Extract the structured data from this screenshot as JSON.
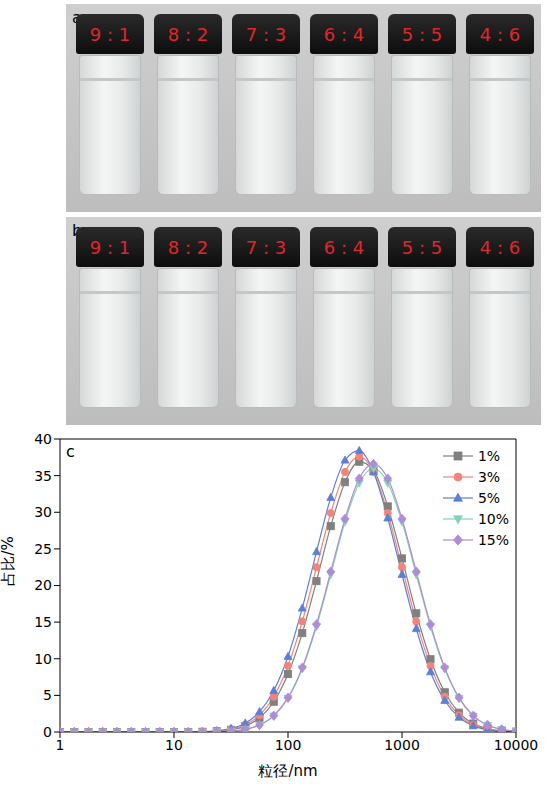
{
  "photos": [
    {
      "label": "a",
      "vials": [
        "9 : 1",
        "8 : 2",
        "7 : 3",
        "6 : 4",
        "5 : 5",
        "4 : 6"
      ]
    },
    {
      "label": "b",
      "vials": [
        "9 : 1",
        "8 : 2",
        "7 : 3",
        "6 : 4",
        "5 : 5",
        "4 : 6"
      ]
    }
  ],
  "chart_data": {
    "type": "line",
    "annotations": [
      "c"
    ],
    "x_label": "粒径/nm",
    "y_label": "占比/%",
    "log": "x",
    "grid": false,
    "legend": "upper right",
    "xlim": [
      1,
      10000
    ],
    "xticks": [
      1,
      10,
      100,
      1000,
      10000
    ],
    "ylim": [
      0,
      40
    ],
    "yticks": [
      0,
      5,
      10,
      15,
      20,
      25,
      30,
      35,
      40
    ],
    "x": [
      1,
      1.334,
      1.778,
      2.371,
      3.162,
      4.217,
      5.623,
      7.499,
      10,
      13.34,
      17.78,
      23.71,
      31.62,
      42.17,
      56.23,
      74.99,
      100,
      133.4,
      177.8,
      237.1,
      316.2,
      421.7,
      562.3,
      749.9,
      1000,
      1334,
      1778,
      2371,
      3162,
      4217,
      5623,
      7499,
      10000
    ],
    "series": [
      {
        "name": "1%",
        "color": "#808080",
        "marker": "square",
        "values": [
          0,
          0,
          0,
          0,
          0,
          0,
          0,
          0,
          0,
          0,
          0.03,
          0.1,
          0.3,
          0.8,
          1.92,
          4.13,
          7.91,
          13.5,
          20.6,
          28.1,
          34.1,
          36.9,
          35.7,
          30.8,
          23.7,
          16.2,
          9.93,
          5.42,
          2.64,
          1.15,
          0.45,
          0.15,
          0.05
        ]
      },
      {
        "name": "3%",
        "color": "#f4847a",
        "marker": "circle",
        "values": [
          0,
          0,
          0,
          0,
          0,
          0,
          0,
          0,
          0,
          0,
          0.04,
          0.12,
          0.37,
          0.97,
          2.29,
          4.82,
          9.03,
          15.1,
          22.5,
          29.9,
          35.5,
          37.6,
          35.5,
          29.9,
          22.5,
          15.1,
          9.03,
          4.82,
          2.29,
          0.97,
          0.37,
          0.12,
          0.04
        ]
      },
      {
        "name": "5%",
        "color": "#5b7fd6",
        "marker": "triangle",
        "values": [
          0,
          0,
          0,
          0,
          0,
          0,
          0,
          0,
          0,
          0,
          0.05,
          0.16,
          0.46,
          1.2,
          2.75,
          5.64,
          10.3,
          16.9,
          24.6,
          32.0,
          37.1,
          38.4,
          35.5,
          29.2,
          21.5,
          14.1,
          8.2,
          4.3,
          2.0,
          0.83,
          0.31,
          0.1,
          0.03
        ]
      },
      {
        "name": "10%",
        "color": "#80d4b4",
        "marker": "triangle-down",
        "values": [
          0,
          0,
          0,
          0,
          0,
          0,
          0,
          0,
          0,
          0,
          0.01,
          0.04,
          0.12,
          0.35,
          0.93,
          2.2,
          4.62,
          8.64,
          14.4,
          21.5,
          28.7,
          34.0,
          36.0,
          34.0,
          28.7,
          21.5,
          14.4,
          8.64,
          4.62,
          2.2,
          0.93,
          0.35,
          0.12
        ]
      },
      {
        "name": "15%",
        "color": "#b08cd8",
        "marker": "diamond",
        "values": [
          0,
          0,
          0,
          0,
          0,
          0,
          0,
          0,
          0,
          0,
          0.01,
          0.04,
          0.12,
          0.36,
          0.95,
          2.23,
          4.69,
          8.79,
          14.7,
          21.9,
          29.1,
          34.6,
          36.6,
          34.6,
          29.1,
          21.9,
          14.7,
          8.79,
          4.69,
          2.23,
          0.95,
          0.36,
          0.12
        ]
      }
    ]
  }
}
